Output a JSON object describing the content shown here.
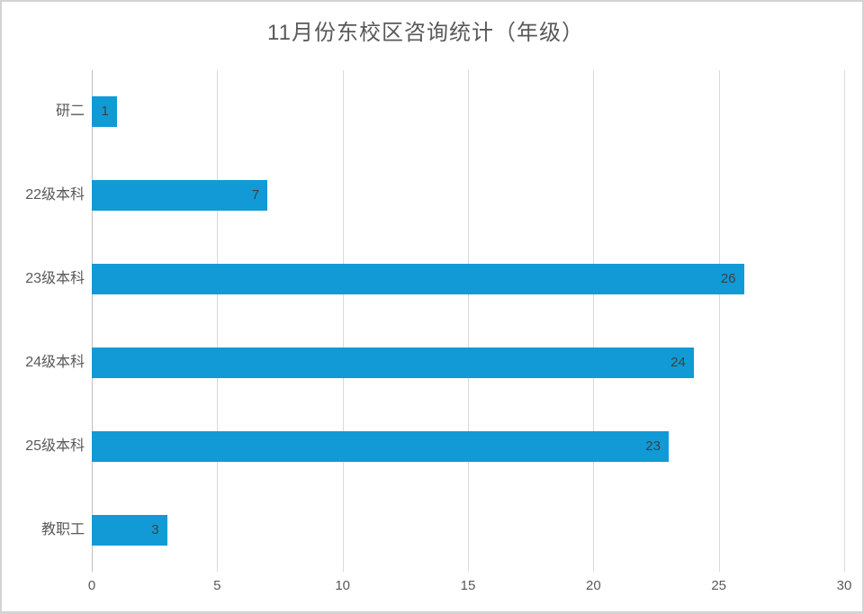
{
  "chart_data": {
    "type": "bar",
    "orientation": "horizontal",
    "title": "11月份东校区咨询统计（年级）",
    "categories": [
      "研二",
      "22级本科",
      "23级本科",
      "24级本科",
      "25级本科",
      "教职工"
    ],
    "values": [
      1,
      7,
      26,
      24,
      23,
      3
    ],
    "data_label_texts": [
      "1",
      "7",
      "26",
      "24",
      "23",
      "3"
    ],
    "xlim": [
      0,
      30
    ],
    "xticks": [
      0,
      5,
      10,
      15,
      20,
      25,
      30
    ],
    "xtick_labels": [
      "0",
      "5",
      "10",
      "15",
      "20",
      "25",
      "30"
    ],
    "grid": true,
    "legend": "none",
    "data_labels": "inside-end",
    "colors": {
      "bar": "#119AD6",
      "gridline": "#D9D9D9",
      "axis_line": "#BFBFBF",
      "title_text": "#595959",
      "axis_text": "#595959",
      "data_label_text": "#404040",
      "border": "#D3D3D3",
      "background": "#FFFFFF"
    }
  }
}
